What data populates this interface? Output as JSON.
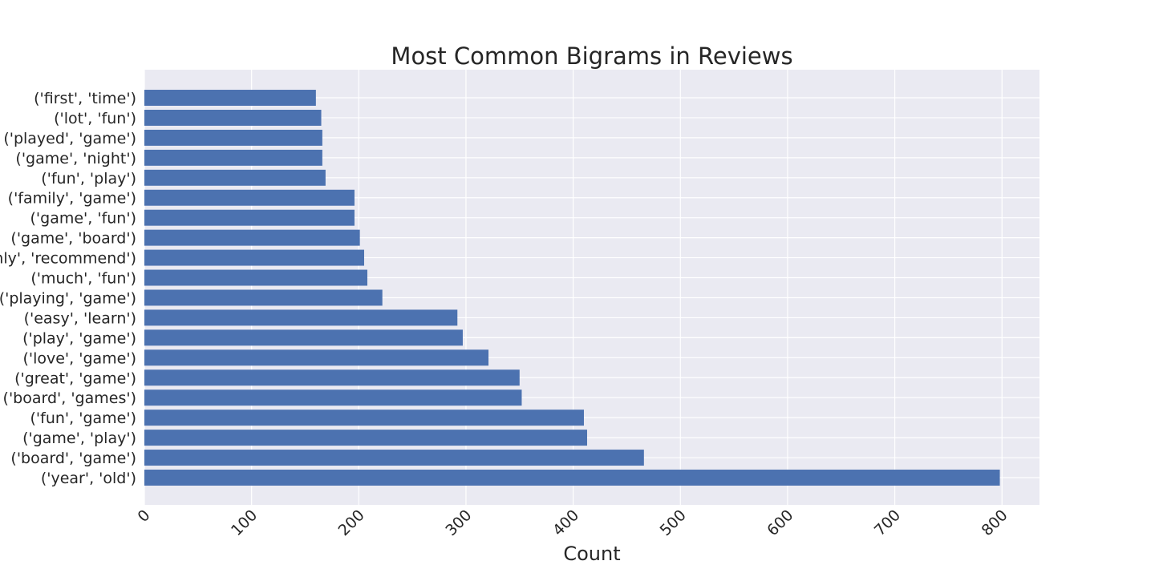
{
  "chart_data": {
    "type": "bar",
    "orientation": "horizontal",
    "title": "Most Common Bigrams in Reviews",
    "xlabel": "Count",
    "ylabel": "",
    "xlim": [
      0,
      835
    ],
    "xticks": [
      0,
      100,
      200,
      300,
      400,
      500,
      600,
      700,
      800
    ],
    "grid": true,
    "bar_color": "#4c72b0",
    "background_color": "#eaeaf2",
    "categories": [
      "('year', 'old')",
      "('board', 'game')",
      "('game', 'play')",
      "('fun', 'game')",
      "('board', 'games')",
      "('great', 'game')",
      "('love', 'game')",
      "('play', 'game')",
      "('easy', 'learn')",
      "('playing', 'game')",
      "('much', 'fun')",
      "('highly', 'recommend')",
      "('game', 'board')",
      "('game', 'fun')",
      "('family', 'game')",
      "('fun', 'play')",
      "('game', 'night')",
      "('played', 'game')",
      "('lot', 'fun')",
      "('first', 'time')"
    ],
    "values": [
      798,
      466,
      413,
      410,
      352,
      350,
      321,
      297,
      292,
      222,
      208,
      205,
      201,
      196,
      196,
      169,
      166,
      166,
      165,
      160
    ]
  }
}
